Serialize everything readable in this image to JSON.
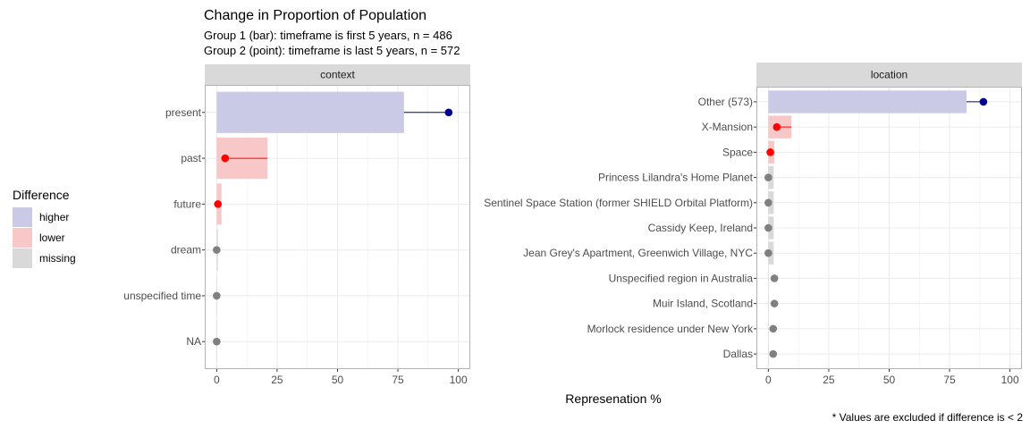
{
  "chart_data": {
    "type": "bar",
    "title": "Change in Proportion of Population",
    "subtitle_lines": [
      "Group 1 (bar): timeframe is first 5 years, n = 486",
      "Group 2 (point): timeframe is last 5 years, n = 572"
    ],
    "xlabel": "Represenation %",
    "caption": "* Values are excluded if difference is < 2",
    "xlim": [
      0,
      100
    ],
    "x_ticks": [
      0,
      25,
      50,
      75,
      100
    ],
    "grid": true,
    "legend": {
      "title": "Difference",
      "position": "left",
      "entries": [
        {
          "key": "higher",
          "label": "higher",
          "fill": "#CACAE6"
        },
        {
          "key": "lower",
          "label": "lower",
          "fill": "#F8C8C8"
        },
        {
          "key": "missing",
          "label": "missing",
          "fill": "#D9D9D9"
        }
      ]
    },
    "colors": {
      "higher_point": "#00008B",
      "lower_point": "#FF0000",
      "missing_point": "#808080",
      "panel_border": "#b3b3b3",
      "strip_bg": "#D9D9D9",
      "grid": "#ebebeb"
    },
    "panels": [
      {
        "strip": "context",
        "categories": [
          {
            "label": "present",
            "bar": 77.5,
            "point": 96,
            "status": "higher"
          },
          {
            "label": "past",
            "bar": 21,
            "point": 3.5,
            "status": "lower"
          },
          {
            "label": "future",
            "bar": 2,
            "point": 0.5,
            "status": "lower"
          },
          {
            "label": "dream",
            "bar": 0.5,
            "point": 0,
            "status": "missing"
          },
          {
            "label": "unspecified time",
            "bar": 0,
            "point": 0,
            "status": "missing"
          },
          {
            "label": "NA",
            "bar": 0,
            "point": 0,
            "status": "missing"
          }
        ]
      },
      {
        "strip": "location",
        "categories": [
          {
            "label": "Other (573)",
            "bar": 82,
            "point": 89,
            "status": "higher"
          },
          {
            "label": "X-Mansion",
            "bar": 9.5,
            "point": 3.5,
            "status": "lower"
          },
          {
            "label": "Space",
            "bar": 2.5,
            "point": 0.8,
            "status": "lower"
          },
          {
            "label": "Princess Lilandra's Home Planet",
            "bar": 2.2,
            "point": 0,
            "status": "missing"
          },
          {
            "label": "Sentinel Space Station (former SHIELD Orbital Platform)",
            "bar": 2.2,
            "point": 0,
            "status": "missing"
          },
          {
            "label": "Cassidy Keep, Ireland",
            "bar": 2.2,
            "point": 0,
            "status": "missing"
          },
          {
            "label": "Jean Grey's Apartment, Greenwich Village, NYC",
            "bar": 2.2,
            "point": 0,
            "status": "missing"
          },
          {
            "label": "Unspecified region in Australia",
            "bar": 0,
            "point": 2.5,
            "status": "missing"
          },
          {
            "label": "Muir Island, Scotland",
            "bar": 0,
            "point": 2.5,
            "status": "missing"
          },
          {
            "label": "Morlock residence under New York",
            "bar": 0,
            "point": 2,
            "status": "missing"
          },
          {
            "label": "Dallas",
            "bar": 0,
            "point": 2,
            "status": "missing"
          }
        ]
      }
    ]
  }
}
